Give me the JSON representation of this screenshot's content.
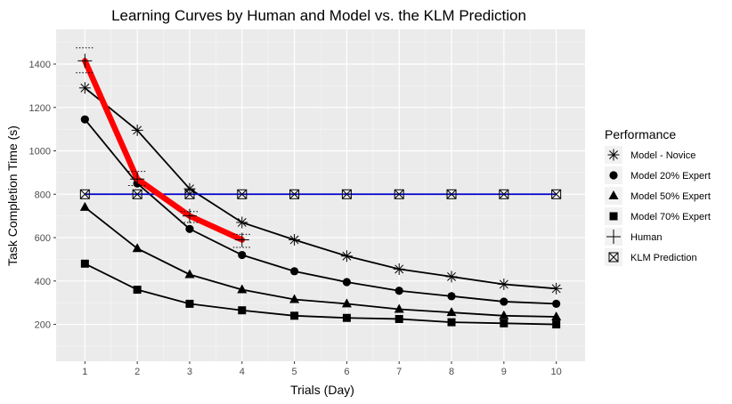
{
  "chart_data": {
    "type": "line",
    "title": "Learning Curves by Human and Model vs. the KLM Prediction",
    "xlabel": "Trials (Day)",
    "ylabel": "Task Completion Time (s)",
    "xlim": [
      0.45,
      10.55
    ],
    "ylim": [
      30,
      1560
    ],
    "x_ticks": [
      1,
      2,
      3,
      4,
      5,
      6,
      7,
      8,
      9,
      10
    ],
    "y_ticks": [
      200,
      400,
      600,
      800,
      1000,
      1200,
      1400
    ],
    "grid": true,
    "legend": {
      "title": "Performance",
      "position": "right"
    },
    "series": [
      {
        "name": "Model - Novice",
        "marker": "asterisk",
        "color": "#000000",
        "x": [
          1,
          2,
          3,
          4,
          5,
          6,
          7,
          8,
          9,
          10
        ],
        "values": [
          1290,
          1095,
          825,
          670,
          590,
          515,
          455,
          420,
          385,
          365
        ]
      },
      {
        "name": "Model 20% Expert",
        "marker": "circle",
        "color": "#000000",
        "x": [
          1,
          2,
          3,
          4,
          5,
          6,
          7,
          8,
          9,
          10
        ],
        "values": [
          1145,
          850,
          640,
          520,
          445,
          395,
          355,
          330,
          305,
          295
        ]
      },
      {
        "name": "Model 50% Expert",
        "marker": "triangle",
        "color": "#000000",
        "x": [
          1,
          2,
          3,
          4,
          5,
          6,
          7,
          8,
          9,
          10
        ],
        "values": [
          740,
          550,
          430,
          360,
          315,
          295,
          270,
          255,
          240,
          235
        ]
      },
      {
        "name": "Model 70% Expert",
        "marker": "square",
        "color": "#000000",
        "x": [
          1,
          2,
          3,
          4,
          5,
          6,
          7,
          8,
          9,
          10
        ],
        "values": [
          480,
          360,
          295,
          265,
          240,
          230,
          225,
          210,
          205,
          200
        ]
      },
      {
        "name": "Human",
        "marker": "plus",
        "color": "#ff0000",
        "x": [
          1,
          2,
          3,
          4
        ],
        "values": [
          1415,
          870,
          700,
          590
        ],
        "error": [
          [
            1360,
            1475
          ],
          [
            840,
            905
          ],
          [
            670,
            720
          ],
          [
            555,
            615
          ]
        ]
      },
      {
        "name": "KLM Prediction",
        "marker": "square-x",
        "color": "#0000cc",
        "x": [
          1,
          2,
          3,
          4,
          5,
          6,
          7,
          8,
          9,
          10
        ],
        "values": [
          800,
          800,
          800,
          800,
          800,
          800,
          800,
          800,
          800,
          800
        ]
      }
    ]
  }
}
